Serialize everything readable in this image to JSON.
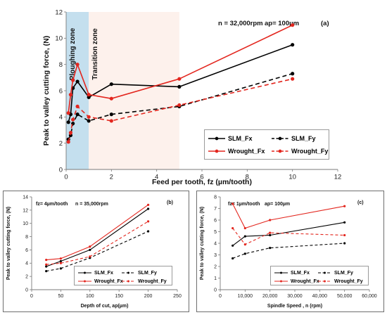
{
  "chart_data": [
    {
      "id": "a",
      "type": "line",
      "panel_label": "(a)",
      "conditions": [
        "n = 32,000rpm",
        "ap= 100µm"
      ],
      "xlabel": "Feed per tooth, fz (µm/tooth)",
      "ylabel": "Peak to valley cutting force, (N)",
      "xlim": [
        0,
        12
      ],
      "ylim": [
        0,
        12
      ],
      "xticks": [
        "0",
        "2",
        "4",
        "6",
        "8",
        "10",
        "12"
      ],
      "yticks": [
        "0",
        "2",
        "4",
        "6",
        "8",
        "10",
        "12"
      ],
      "zones": [
        {
          "label": "Ploughing zone",
          "x_range": [
            0,
            1
          ],
          "color": "#c4dfee"
        },
        {
          "label": "Transition zone",
          "x_range": [
            1,
            5
          ],
          "color": "#fdf1ec"
        }
      ],
      "grid": false,
      "legend_position": "bottom-right",
      "series": [
        {
          "name": "SLM_Fx",
          "color": "#000000",
          "dashed": false,
          "x": [
            0.1,
            0.2,
            0.3,
            0.5,
            1,
            2,
            5,
            10
          ],
          "y": [
            3.6,
            4.2,
            6.2,
            6.7,
            5.5,
            6.5,
            6.3,
            9.5
          ]
        },
        {
          "name": "SLM_Fy",
          "color": "#000000",
          "dashed": true,
          "x": [
            0.1,
            0.2,
            0.3,
            0.5,
            1,
            2,
            5,
            10
          ],
          "y": [
            2.3,
            2.6,
            3.5,
            4.2,
            3.7,
            4.2,
            4.8,
            7.3
          ]
        },
        {
          "name": "Wrought_Fx",
          "color": "#e3261e",
          "dashed": false,
          "x": [
            0.1,
            0.2,
            0.3,
            0.5,
            1,
            2,
            5,
            10
          ],
          "y": [
            4.3,
            5.7,
            6.8,
            8.0,
            5.7,
            5.4,
            6.9,
            11.0
          ]
        },
        {
          "name": "Wrought_Fy",
          "color": "#e3261e",
          "dashed": true,
          "x": [
            0.1,
            0.2,
            0.3,
            0.5,
            1,
            2,
            5,
            10
          ],
          "y": [
            2.1,
            2.8,
            3.8,
            4.8,
            4.0,
            3.7,
            4.9,
            6.9
          ]
        }
      ]
    },
    {
      "id": "b",
      "type": "line",
      "panel_label": "(b)",
      "conditions": [
        "fz= 4µm/tooth",
        "n = 35,000rpm"
      ],
      "xlabel": "Depth of cut, ap(µm)",
      "ylabel": "Peak to valley cutting force, (N)",
      "xlim": [
        0,
        250
      ],
      "ylim": [
        0,
        14
      ],
      "xticks": [
        "0",
        "50",
        "100",
        "150",
        "200",
        "250"
      ],
      "yticks": [
        "0",
        "2",
        "4",
        "6",
        "8",
        "10",
        "12",
        "14"
      ],
      "grid": false,
      "legend_position": "bottom-right",
      "series": [
        {
          "name": "SLM_Fx",
          "color": "#000000",
          "dashed": false,
          "x": [
            25,
            50,
            100,
            200
          ],
          "y": [
            3.5,
            4.3,
            6.0,
            12.2
          ]
        },
        {
          "name": "SLM_Fy",
          "color": "#000000",
          "dashed": true,
          "x": [
            25,
            50,
            100,
            200
          ],
          "y": [
            2.8,
            3.2,
            4.8,
            8.8
          ]
        },
        {
          "name": "Wrought_Fx",
          "color": "#e3261e",
          "dashed": false,
          "x": [
            25,
            50,
            100,
            200
          ],
          "y": [
            4.5,
            4.7,
            6.5,
            12.8
          ]
        },
        {
          "name": "Wrought_Fy",
          "color": "#e3261e",
          "dashed": true,
          "x": [
            25,
            50,
            100,
            200
          ],
          "y": [
            3.8,
            4.0,
            5.0,
            10.3
          ]
        }
      ]
    },
    {
      "id": "c",
      "type": "line",
      "panel_label": "(c)",
      "conditions": [
        "fz= 1µm/tooth",
        "ap= 100µm"
      ],
      "xlabel": "Spindle Speed , n (rpm)",
      "ylabel": "Peak to valley cutting force, (N)",
      "xlim": [
        0,
        60000
      ],
      "ylim": [
        0,
        8
      ],
      "xticks": [
        "0",
        "10,000",
        "20,000",
        "30,000",
        "40,000",
        "50,000",
        "60,000"
      ],
      "yticks": [
        "0",
        "1",
        "2",
        "3",
        "4",
        "5",
        "6",
        "7",
        "8"
      ],
      "grid": false,
      "legend_position": "bottom-right",
      "series": [
        {
          "name": "SLM_Fx",
          "color": "#000000",
          "dashed": false,
          "x": [
            5000,
            10000,
            20000,
            50000
          ],
          "y": [
            3.8,
            4.6,
            4.7,
            5.8
          ]
        },
        {
          "name": "SLM_Fy",
          "color": "#000000",
          "dashed": true,
          "x": [
            5000,
            10000,
            20000,
            50000
          ],
          "y": [
            2.7,
            3.1,
            3.6,
            4.0
          ]
        },
        {
          "name": "Wrought_Fx",
          "color": "#e3261e",
          "dashed": false,
          "x": [
            5000,
            10000,
            20000,
            50000
          ],
          "y": [
            7.4,
            5.3,
            6.0,
            7.2
          ]
        },
        {
          "name": "Wrought_Fy",
          "color": "#e3261e",
          "dashed": true,
          "x": [
            5000,
            10000,
            20000,
            50000
          ],
          "y": [
            5.3,
            3.9,
            4.9,
            4.7
          ]
        }
      ]
    }
  ]
}
